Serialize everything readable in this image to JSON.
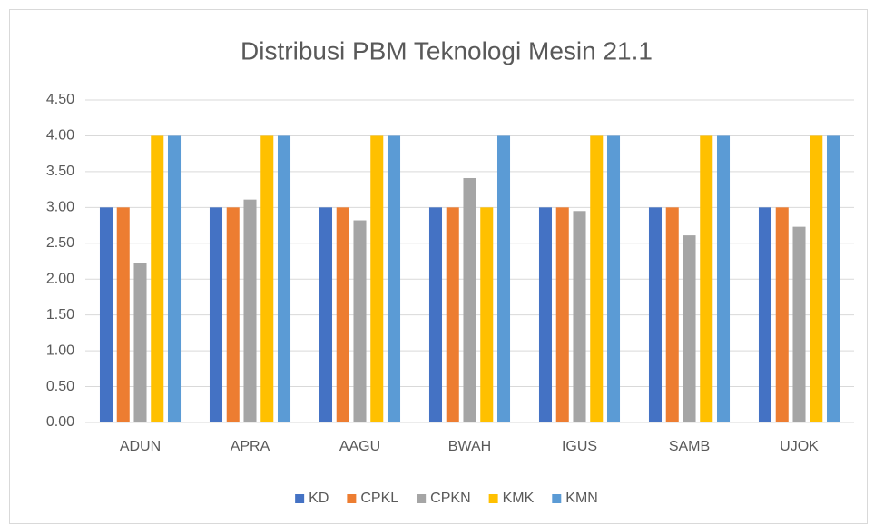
{
  "chart_data": {
    "type": "bar",
    "title": "Distribusi PBM Teknologi Mesin 21.1",
    "categories": [
      "ADUN",
      "APRA",
      "AAGU",
      "BWAH",
      "IGUS",
      "SAMB",
      "UJOK"
    ],
    "series": [
      {
        "name": "KD",
        "color": "#4472c4",
        "values": [
          3,
          3,
          3,
          3,
          3,
          3,
          3
        ]
      },
      {
        "name": "CPKL",
        "color": "#ed7d31",
        "values": [
          3,
          3,
          3,
          3,
          3,
          3,
          3
        ]
      },
      {
        "name": "CPKN",
        "color": "#a5a5a5",
        "values": [
          2.22,
          3.11,
          2.82,
          3.41,
          2.95,
          2.61,
          2.73
        ]
      },
      {
        "name": "KMK",
        "color": "#ffc000",
        "values": [
          4,
          4,
          4,
          3,
          4,
          4,
          4
        ]
      },
      {
        "name": "KMN",
        "color": "#5b9bd5",
        "values": [
          4,
          4,
          4,
          4,
          4,
          4,
          4
        ]
      }
    ],
    "ylim": [
      0,
      4.5
    ],
    "yticks": [
      {
        "value": 0,
        "label": "0.00"
      },
      {
        "value": 0.5,
        "label": "0.50"
      },
      {
        "value": 1,
        "label": "1.00"
      },
      {
        "value": 1.5,
        "label": "1.50"
      },
      {
        "value": 2,
        "label": "2.00"
      },
      {
        "value": 2.5,
        "label": "2.50"
      },
      {
        "value": 3,
        "label": "3.00"
      },
      {
        "value": 3.5,
        "label": "3.50"
      },
      {
        "value": 4,
        "label": "4.00"
      },
      {
        "value": 4.5,
        "label": "4.50"
      }
    ],
    "grid": true,
    "legend": "bottom"
  }
}
